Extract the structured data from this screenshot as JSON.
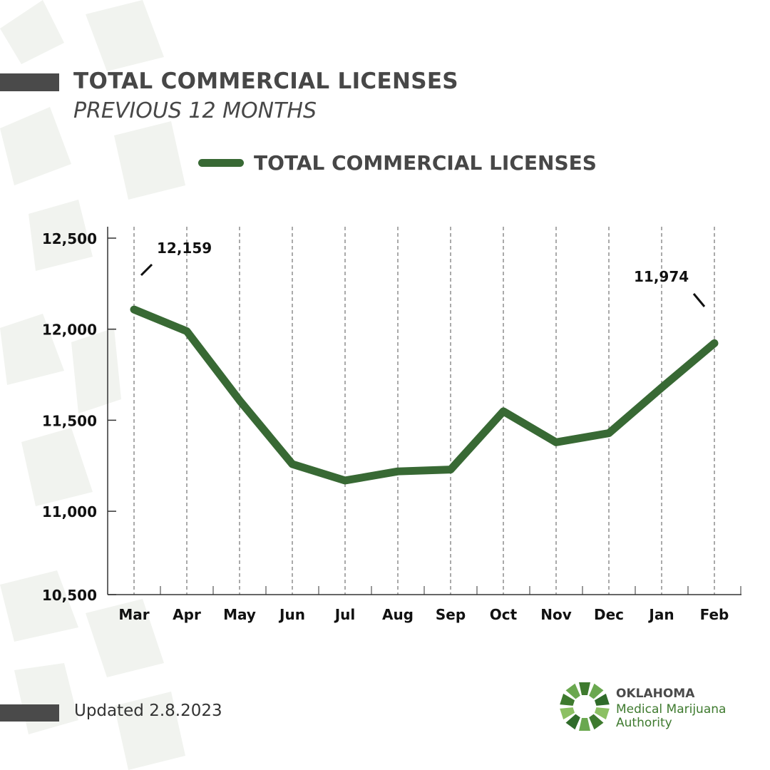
{
  "header": {
    "title": "TOTAL COMMERCIAL LICENSES",
    "subtitle": "PREVIOUS 12 MONTHS"
  },
  "footer": {
    "updated": "Updated 2.8.2023"
  },
  "logo": {
    "line1": "OKLAHOMA",
    "line2": "Medical Marijuana",
    "line3": "Authority"
  },
  "colors": {
    "series": "#386934",
    "text": "#474747",
    "accent_bar": "#4a4a4a"
  },
  "chart_data": {
    "type": "line",
    "title": "TOTAL COMMERCIAL LICENSES",
    "subtitle": "PREVIOUS 12 MONTHS",
    "categories": [
      "Mar",
      "Apr",
      "May",
      "Jun",
      "Jul",
      "Aug",
      "Sep",
      "Oct",
      "Nov",
      "Dec",
      "Jan",
      "Feb"
    ],
    "series": [
      {
        "name": "TOTAL COMMERCIAL LICENSES",
        "values": [
          12159,
          12040,
          11660,
          11310,
          11220,
          11270,
          11280,
          11600,
          11430,
          11480,
          11730,
          11974
        ]
      }
    ],
    "yticks": [
      "12,500",
      "12,000",
      "11,500",
      "11,000",
      "10,500"
    ],
    "ytick_values": [
      12500,
      12000,
      11500,
      11000,
      10500
    ],
    "ylim": [
      10500,
      12500
    ],
    "annotations": [
      {
        "category": "Mar",
        "text": "12,159"
      },
      {
        "category": "Feb",
        "text": "11,974"
      }
    ],
    "grid": "vertical dashed",
    "legend": "top"
  }
}
